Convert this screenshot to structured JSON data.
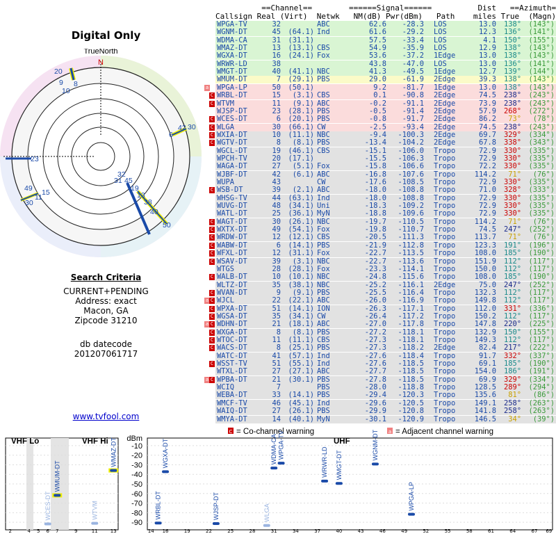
{
  "title": "Digital Only",
  "radar": {
    "north_label": "TrueNorth",
    "n_label": "N",
    "labels": [
      "20",
      "9",
      "10",
      "8",
      "6",
      "42",
      "30",
      "23",
      "32",
      "31",
      "45",
      "19",
      "13",
      "38",
      "40",
      "50",
      "49",
      "15",
      "30",
      "11"
    ]
  },
  "criteria": {
    "heading": "Search Criteria",
    "lines": [
      "CURRENT+PENDING",
      "Address: exact",
      "Macon, GA",
      "Zipcode 31210"
    ],
    "db_label": "db datecode",
    "db_value": "201207061717"
  },
  "link": "www.tvfool.com",
  "table_header": {
    "line1": "          ==Channel==        ======Signal======          Dist   ==Azimuth==",
    "line2": "Callsign Real (Virt)  Netwk   NM(dB) Pwr(dBm)   Path    miles True  (Magn)"
  },
  "rows": [
    [
      "WPGA-TV",
      "32",
      "",
      "ABC",
      "62.6",
      "-28.3",
      "LOS",
      "13.0",
      "138°",
      "(143°)",
      "g",
      ""
    ],
    [
      "WGNM-DT",
      "45",
      "(64.1)",
      "Ind",
      "61.6",
      "-29.2",
      "LOS",
      "12.3",
      "136°",
      "(141°)",
      "g",
      ""
    ],
    [
      "WDMA-CA",
      "31",
      "(31.1)",
      "",
      "57.5",
      "-33.4",
      "LOS",
      "4.1",
      "150°",
      "(155°)",
      "g",
      ""
    ],
    [
      "WMAZ-DT",
      "13",
      "(13.1)",
      "CBS",
      "54.9",
      "-35.9",
      "LOS",
      "12.9",
      "138°",
      "(143°)",
      "g",
      ""
    ],
    [
      "WGXA-DT",
      "16",
      "(24.1)",
      "Fox",
      "53.6",
      "-37.2",
      "1Edge",
      "13.0",
      "138°",
      "(143°)",
      "g",
      ""
    ],
    [
      "WRWR-LD",
      "38",
      "",
      "",
      "43.8",
      "-47.0",
      "LOS",
      "13.0",
      "136°",
      "(141°)",
      "g",
      ""
    ],
    [
      "WMGT-DT",
      "40",
      "(41.1)",
      "NBC",
      "41.3",
      "-49.5",
      "1Edge",
      "12.7",
      "139°",
      "(144°)",
      "g",
      ""
    ],
    [
      "WMUM-DT",
      "7",
      "(29.1)",
      "PBS",
      "29.0",
      "-61.9",
      "2Edge",
      "39.3",
      "138°",
      "(143°)",
      "y",
      ""
    ],
    [
      "WPGA-LP",
      "50",
      "(50.1)",
      "",
      "9.2",
      "-81.7",
      "1Edge",
      "13.0",
      "138°",
      "(143°)",
      "p",
      "a"
    ],
    [
      "WRBL-DT",
      "15",
      "(3.1)",
      "CBS",
      "0.1",
      "-90.8",
      "2Edge",
      "74.5",
      "238°",
      "(243°)",
      "p",
      "C"
    ],
    [
      "WTVM",
      "11",
      "(9.1)",
      "ABC",
      "-0.2",
      "-91.1",
      "2Edge",
      "73.9",
      "238°",
      "(243°)",
      "p",
      "C"
    ],
    [
      "WJSP-DT",
      "23",
      "(28.1)",
      "PBS",
      "-0.5",
      "-91.4",
      "2Edge",
      "57.9",
      "268°",
      "(272°)",
      "p",
      ""
    ],
    [
      "WCES-DT",
      "6",
      "(20.1)",
      "PBS",
      "-0.8",
      "-91.7",
      "2Edge",
      "86.2",
      "73°",
      "(78°)",
      "p",
      "C"
    ],
    [
      "WLGA",
      "30",
      "(66.1)",
      "CW",
      "-2.5",
      "-93.4",
      "2Edge",
      "74.5",
      "238°",
      "(243°)",
      "p",
      "C"
    ],
    [
      "WXIA-DT",
      "10",
      "(11.1)",
      "NBC",
      "-9.4",
      "-100.3",
      "2Edge",
      "69.7",
      "329°",
      "(334°)",
      "s",
      "C"
    ],
    [
      "WGTV-DT",
      "8",
      "(8.1)",
      "PBS",
      "-13.4",
      "-104.2",
      "2Edge",
      "67.8",
      "338°",
      "(343°)",
      "s",
      "C"
    ],
    [
      "WGCL-DT",
      "19",
      "(46.1)",
      "CBS",
      "-15.1",
      "-106.0",
      "Tropo",
      "72.9",
      "330°",
      "(335°)",
      "s",
      ""
    ],
    [
      "WPCH-TV",
      "20",
      "(17.1)",
      "",
      "-15.5",
      "-106.3",
      "Tropo",
      "72.9",
      "330°",
      "(335°)",
      "s",
      ""
    ],
    [
      "WAGA-DT",
      "27",
      "(5.1)",
      "Fox",
      "-15.8",
      "-106.6",
      "Tropo",
      "72.2",
      "330°",
      "(335°)",
      "s",
      ""
    ],
    [
      "WJBF-DT",
      "42",
      "(6.1)",
      "ABC",
      "-16.8",
      "-107.6",
      "Tropo",
      "114.2",
      "71°",
      "(76°)",
      "s",
      ""
    ],
    [
      "WUPA",
      "43",
      "",
      "CW",
      "-17.6",
      "-108.5",
      "Tropo",
      "72.9",
      "330°",
      "(335°)",
      "s",
      ""
    ],
    [
      "WSB-DT",
      "39",
      "(2.1)",
      "ABC",
      "-18.0",
      "-108.8",
      "Tropo",
      "71.0",
      "328°",
      "(333°)",
      "s",
      "C"
    ],
    [
      "WHSG-TV",
      "44",
      "(63.1)",
      "Ind",
      "-18.0",
      "-108.8",
      "Tropo",
      "72.9",
      "330°",
      "(335°)",
      "s",
      ""
    ],
    [
      "WUVG-DT",
      "48",
      "(34.1)",
      "Uni",
      "-18.3",
      "-109.2",
      "Tropo",
      "72.9",
      "330°",
      "(335°)",
      "s",
      ""
    ],
    [
      "WATL-DT",
      "25",
      "(36.1)",
      "MyN",
      "-18.8",
      "-109.6",
      "Tropo",
      "72.9",
      "330°",
      "(335°)",
      "s",
      ""
    ],
    [
      "WAGT-DT",
      "30",
      "(26.1)",
      "NBC",
      "-19.7",
      "-110.5",
      "Tropo",
      "114.2",
      "71°",
      "(76°)",
      "s",
      "C"
    ],
    [
      "WXTX-DT",
      "49",
      "(54.1)",
      "Fox",
      "-19.8",
      "-110.7",
      "Tropo",
      "74.5",
      "247°",
      "(252°)",
      "s",
      "C"
    ],
    [
      "WRDW-DT",
      "12",
      "(12.1)",
      "CBS",
      "-20.5",
      "-111.3",
      "Tropo",
      "113.7",
      "71°",
      "(76°)",
      "s",
      "C"
    ],
    [
      "WABW-DT",
      "6",
      "(14.1)",
      "PBS",
      "-21.9",
      "-112.8",
      "Tropo",
      "123.3",
      "191°",
      "(196°)",
      "s",
      "C"
    ],
    [
      "WFXL-DT",
      "12",
      "(31.1)",
      "Fox",
      "-22.7",
      "-113.5",
      "Tropo",
      "108.0",
      "185°",
      "(190°)",
      "s",
      "C"
    ],
    [
      "WSAV-DT",
      "39",
      "(3.1)",
      "NBC",
      "-22.7",
      "-113.6",
      "Tropo",
      "151.9",
      "112°",
      "(117°)",
      "s",
      "C"
    ],
    [
      "WTGS",
      "28",
      "(28.1)",
      "Fox",
      "-23.3",
      "-114.1",
      "Tropo",
      "150.0",
      "112°",
      "(117°)",
      "s",
      ""
    ],
    [
      "WALB-DT",
      "10",
      "(10.1)",
      "NBC",
      "-24.8",
      "-115.6",
      "Tropo",
      "108.0",
      "185°",
      "(190°)",
      "s",
      "C"
    ],
    [
      "WLTZ-DT",
      "35",
      "(38.1)",
      "NBC",
      "-25.2",
      "-116.1",
      "2Edge",
      "75.0",
      "247°",
      "(252°)",
      "s",
      ""
    ],
    [
      "WVAN-DT",
      "9",
      "(9.1)",
      "PBS",
      "-25.5",
      "-116.4",
      "Tropo",
      "132.3",
      "112°",
      "(117°)",
      "s",
      "C"
    ],
    [
      "WJCL",
      "22",
      "(22.1)",
      "ABC",
      "-26.0",
      "-116.9",
      "Tropo",
      "149.8",
      "112°",
      "(117°)",
      "s",
      "aC"
    ],
    [
      "WPXA-DT",
      "51",
      "(14.1)",
      "ION",
      "-26.3",
      "-117.1",
      "Tropo",
      "112.0",
      "331°",
      "(336°)",
      "s",
      "C"
    ],
    [
      "WGSA-DT",
      "35",
      "(34.1)",
      "CW",
      "-26.4",
      "-117.2",
      "Tropo",
      "150.2",
      "112°",
      "(117°)",
      "s",
      "C"
    ],
    [
      "WDHN-DT",
      "21",
      "(18.1)",
      "ABC",
      "-27.0",
      "-117.8",
      "Tropo",
      "147.8",
      "220°",
      "(225°)",
      "s",
      "aC"
    ],
    [
      "WXGA-DT",
      "8",
      "(8.1)",
      "PBS",
      "-27.2",
      "-118.1",
      "Tropo",
      "132.9",
      "150°",
      "(155°)",
      "s",
      "C"
    ],
    [
      "WTOC-DT",
      "11",
      "(11.1)",
      "CBS",
      "-27.3",
      "-118.1",
      "Tropo",
      "149.3",
      "112°",
      "(117°)",
      "s",
      "C"
    ],
    [
      "WACS-DT",
      "8",
      "(25.1)",
      "PBS",
      "-27.3",
      "-118.2",
      "2Edge",
      "82.4",
      "217°",
      "(222°)",
      "s",
      "C"
    ],
    [
      "WATC-DT",
      "41",
      "(57.1)",
      "Ind",
      "-27.6",
      "-118.4",
      "Tropo",
      "91.7",
      "332°",
      "(337°)",
      "s",
      ""
    ],
    [
      "WSST-TV",
      "51",
      "(55.1)",
      "Ind",
      "-27.6",
      "-118.5",
      "Tropo",
      "69.1",
      "185°",
      "(190°)",
      "s",
      "C"
    ],
    [
      "WTXL-DT",
      "27",
      "(27.1)",
      "ABC",
      "-27.7",
      "-118.5",
      "Tropo",
      "154.0",
      "186°",
      "(191°)",
      "s",
      ""
    ],
    [
      "WPBA-DT",
      "21",
      "(30.1)",
      "PBS",
      "-27.8",
      "-118.5",
      "Tropo",
      "69.9",
      "329°",
      "(334°)",
      "s",
      "aC"
    ],
    [
      "WCIQ",
      "7",
      "",
      "PBS",
      "-28.0",
      "-118.8",
      "Tropo",
      "128.5",
      "289°",
      "(294°)",
      "s",
      ""
    ],
    [
      "WEBA-DT",
      "33",
      "(14.1)",
      "PBS",
      "-29.4",
      "-120.3",
      "Tropo",
      "135.6",
      "81°",
      "(86°)",
      "s",
      ""
    ],
    [
      "WMCF-TV",
      "46",
      "(45.1)",
      "Ind",
      "-29.6",
      "-120.5",
      "Tropo",
      "149.1",
      "258°",
      "(263°)",
      "s",
      ""
    ],
    [
      "WAIQ-DT",
      "27",
      "(26.1)",
      "PBS",
      "-29.9",
      "-120.8",
      "Tropo",
      "141.8",
      "258°",
      "(263°)",
      "s",
      ""
    ],
    [
      "WMYA-DT",
      "14",
      "(40.1)",
      "MyN",
      "-30.1",
      "-120.9",
      "Tropo",
      "146.5",
      "34°",
      "(39°)",
      "s",
      ""
    ]
  ],
  "spectrum": {
    "vhf_lo": "VHF Lo",
    "vhf_hi": "VHF Hi",
    "uhf": "UHF",
    "dbm": "dBm",
    "yticks": [
      "-10",
      "-20",
      "-30",
      "-40",
      "-50",
      "-60",
      "-70",
      "-80",
      "-90"
    ],
    "legend_co": "= Co-channel warning",
    "legend_adj": "= Adjacent channel warning",
    "vhf_ticks": [
      "2",
      "4",
      "5",
      "6",
      "7",
      "9",
      "11",
      "13"
    ],
    "uhf_ticks": [
      "14",
      "16",
      "19",
      "22",
      "25",
      "28",
      "31",
      "34",
      "37",
      "40",
      "43",
      "46",
      "49",
      "52",
      "55",
      "58",
      "61",
      "64",
      "67",
      "69"
    ],
    "stations": [
      {
        "name": "WCES-DT",
        "ch": 6,
        "dbm": -91.7,
        "band": "vhf",
        "faint": true
      },
      {
        "name": "WMUM-DT",
        "ch": 7,
        "dbm": -61.9,
        "band": "vhf"
      },
      {
        "name": "WTVM",
        "ch": 11,
        "dbm": -91.1,
        "band": "vhf",
        "faint": true
      },
      {
        "name": "WMAZ-DT",
        "ch": 13,
        "dbm": -35.9,
        "band": "vhf"
      },
      {
        "name": "WRBL-DT",
        "ch": 15,
        "dbm": -90.8,
        "band": "uhf"
      },
      {
        "name": "WGXA-DT",
        "ch": 16,
        "dbm": -37.2,
        "band": "uhf"
      },
      {
        "name": "WJSP-DT",
        "ch": 23,
        "dbm": -91.4,
        "band": "uhf"
      },
      {
        "name": "WLGA",
        "ch": 30,
        "dbm": -93.4,
        "band": "uhf",
        "faint": true
      },
      {
        "name": "WDMA-CA",
        "ch": 31,
        "dbm": -33.4,
        "band": "uhf"
      },
      {
        "name": "WPGA-TV",
        "ch": 32,
        "dbm": -28.3,
        "band": "uhf"
      },
      {
        "name": "WRWR-LD",
        "ch": 38,
        "dbm": -47.0,
        "band": "uhf"
      },
      {
        "name": "WMGT-DT",
        "ch": 40,
        "dbm": -49.5,
        "band": "uhf"
      },
      {
        "name": "WGNM-DT",
        "ch": 45,
        "dbm": -29.2,
        "band": "uhf"
      },
      {
        "name": "WPGA-LP",
        "ch": 50,
        "dbm": -81.7,
        "band": "uhf"
      }
    ]
  }
}
